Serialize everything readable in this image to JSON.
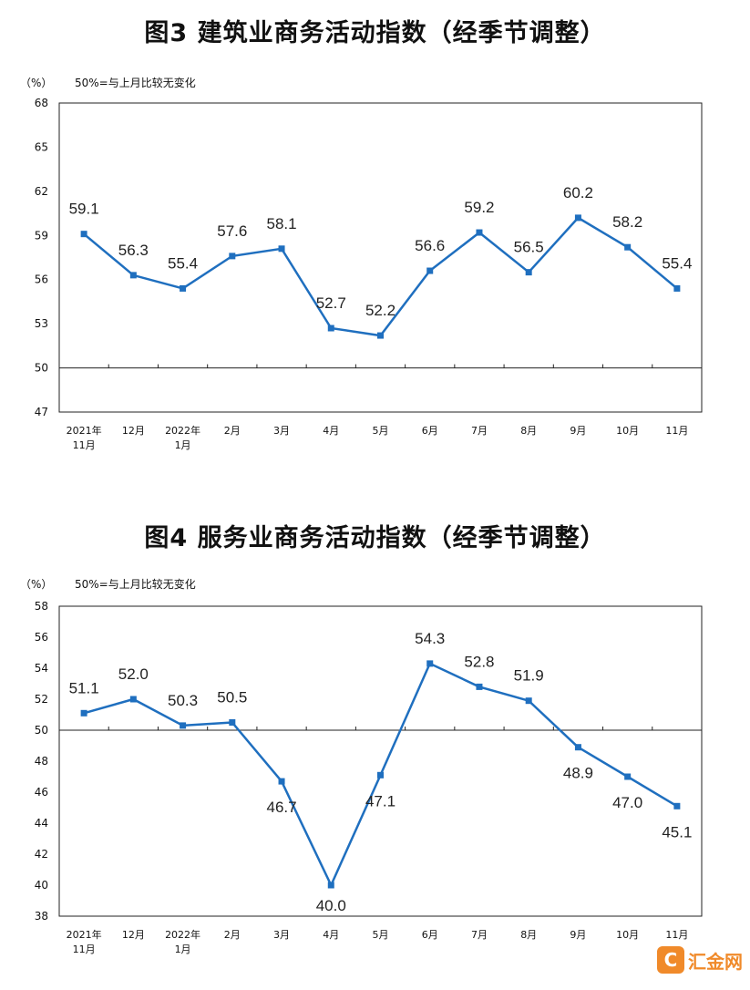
{
  "chart_data": [
    {
      "type": "line",
      "title": "图3  建筑业商务活动指数（经季节调整）",
      "unit_label": "（%）",
      "note": "50%=与上月比较无变化",
      "categories": [
        "2021年\n11月",
        "12月",
        "2022年\n1月",
        "2月",
        "3月",
        "4月",
        "5月",
        "6月",
        "7月",
        "8月",
        "9月",
        "10月",
        "11月"
      ],
      "values": [
        59.1,
        56.3,
        55.4,
        57.6,
        58.1,
        52.7,
        52.2,
        56.6,
        59.2,
        56.5,
        60.2,
        58.2,
        55.4
      ],
      "ylim": [
        47,
        68
      ],
      "yticks": [
        47,
        50,
        53,
        56,
        59,
        62,
        65,
        68
      ],
      "reference_line": 50,
      "color": "#1f6fbf"
    },
    {
      "type": "line",
      "title": "图4  服务业商务活动指数（经季节调整）",
      "unit_label": "（%）",
      "note": "50%=与上月比较无变化",
      "categories": [
        "2021年\n11月",
        "12月",
        "2022年\n1月",
        "2月",
        "3月",
        "4月",
        "5月",
        "6月",
        "7月",
        "8月",
        "9月",
        "10月",
        "11月"
      ],
      "values": [
        51.1,
        52.0,
        50.3,
        50.5,
        46.7,
        40.0,
        47.1,
        54.3,
        52.8,
        51.9,
        48.9,
        47.0,
        45.1
      ],
      "ylim": [
        38,
        58
      ],
      "yticks": [
        38,
        40,
        42,
        44,
        46,
        48,
        50,
        52,
        54,
        56,
        58
      ],
      "reference_line": 50,
      "color": "#1f6fbf"
    }
  ],
  "watermark": {
    "icon": "C",
    "text": "汇金网"
  }
}
